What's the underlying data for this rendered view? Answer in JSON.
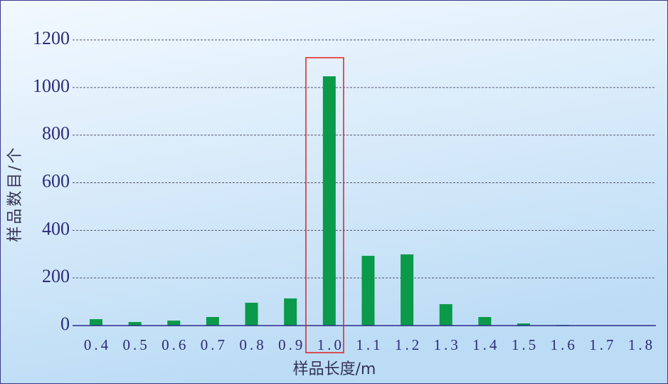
{
  "chart_data": {
    "type": "bar",
    "xlabel": "样品长度/m",
    "ylabel": "样品数目/个",
    "categories": [
      "0.4",
      "0.5",
      "0.6",
      "0.7",
      "0.8",
      "0.9",
      "1.0",
      "1.1",
      "1.2",
      "1.3",
      "1.4",
      "1.5",
      "1.6",
      "1.7",
      "1.8"
    ],
    "values": [
      27,
      15,
      21,
      36,
      96,
      114,
      1047,
      293,
      299,
      90,
      36,
      9,
      3,
      1,
      0
    ],
    "color": "#0a9a4a",
    "ylim": [
      0,
      1200
    ],
    "yticks": [
      0,
      200,
      400,
      600,
      800,
      1000,
      1200
    ],
    "grid": true
  }
}
